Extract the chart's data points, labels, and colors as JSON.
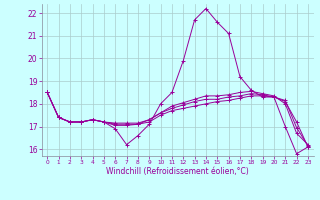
{
  "xlabel": "Windchill (Refroidissement éolien,°C)",
  "bg_color": "#ccffff",
  "line_color": "#990099",
  "grid_color": "#aacccc",
  "xlim": [
    -0.5,
    23.5
  ],
  "ylim": [
    15.7,
    22.4
  ],
  "yticks": [
    16,
    17,
    18,
    19,
    20,
    21,
    22
  ],
  "xticks": [
    0,
    1,
    2,
    3,
    4,
    5,
    6,
    7,
    8,
    9,
    10,
    11,
    12,
    13,
    14,
    15,
    16,
    17,
    18,
    19,
    20,
    21,
    22,
    23
  ],
  "series": [
    [
      18.5,
      17.4,
      17.2,
      17.2,
      17.3,
      17.2,
      16.9,
      16.2,
      16.6,
      17.1,
      18.0,
      18.5,
      19.9,
      21.7,
      22.2,
      21.6,
      21.1,
      19.2,
      18.6,
      18.3,
      18.3,
      17.0,
      15.8,
      16.1
    ],
    [
      18.5,
      17.4,
      17.2,
      17.2,
      17.3,
      17.2,
      17.05,
      17.05,
      17.1,
      17.2,
      17.5,
      17.7,
      17.8,
      17.9,
      18.0,
      18.1,
      18.15,
      18.25,
      18.35,
      18.35,
      18.3,
      18.1,
      17.2,
      16.1
    ],
    [
      18.5,
      17.4,
      17.2,
      17.2,
      17.3,
      17.2,
      17.1,
      17.1,
      17.1,
      17.3,
      17.6,
      17.9,
      18.05,
      18.2,
      18.35,
      18.35,
      18.4,
      18.5,
      18.55,
      18.45,
      18.35,
      18.0,
      16.7,
      16.2
    ],
    [
      18.5,
      17.4,
      17.2,
      17.2,
      17.3,
      17.2,
      17.15,
      17.15,
      17.15,
      17.3,
      17.6,
      17.8,
      17.95,
      18.1,
      18.2,
      18.2,
      18.3,
      18.35,
      18.45,
      18.4,
      18.3,
      18.15,
      16.95,
      16.15
    ]
  ]
}
